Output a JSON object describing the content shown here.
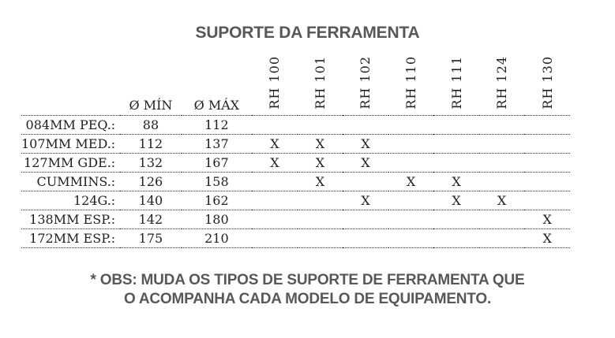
{
  "title": "SUPORTE DA FERRAMENTA",
  "table": {
    "col_headers": [
      "Ø MÍN",
      "Ø MÁX"
    ],
    "rh_headers": [
      "RH 100",
      "RH 101",
      "RH 102",
      "RH 110",
      "RH 111",
      "RH 124",
      "RH 130"
    ],
    "rows": [
      {
        "label": "084MM PEQ.:",
        "min": "88",
        "max": "112",
        "marks": [
          "",
          "",
          "",
          "",
          "",
          "",
          ""
        ]
      },
      {
        "label": "107MM MED.:",
        "min": "112",
        "max": "137",
        "marks": [
          "X",
          "X",
          "X",
          "",
          "",
          "",
          ""
        ]
      },
      {
        "label": "127MM GDE.:",
        "min": "132",
        "max": "167",
        "marks": [
          "X",
          "X",
          "X",
          "",
          "",
          "",
          ""
        ]
      },
      {
        "label": "CUMMINS.:",
        "min": "126",
        "max": "158",
        "marks": [
          "",
          "X",
          "",
          "X",
          "X",
          "",
          ""
        ]
      },
      {
        "label": "124G.:",
        "min": "140",
        "max": "162",
        "marks": [
          "",
          "",
          "X",
          "",
          "X",
          "X",
          ""
        ]
      },
      {
        "label": "138MM ESP.:",
        "min": "142",
        "max": "180",
        "marks": [
          "",
          "",
          "",
          "",
          "",
          "",
          "X"
        ]
      },
      {
        "label": "172MM ESP.:",
        "min": "175",
        "max": "210",
        "marks": [
          "",
          "",
          "",
          "",
          "",
          "",
          "X"
        ]
      }
    ]
  },
  "footer": {
    "line1": "* OBS: MUDA OS TIPOS DE SUPORTE DE FERRAMENTA QUE",
    "line2": "O ACOMPANHA CADA MODELO DE EQUIPAMENTO."
  },
  "colors": {
    "heading": "#58585a",
    "table_text": "#1f1f1f",
    "line": "#333333",
    "background": "#ffffff"
  }
}
